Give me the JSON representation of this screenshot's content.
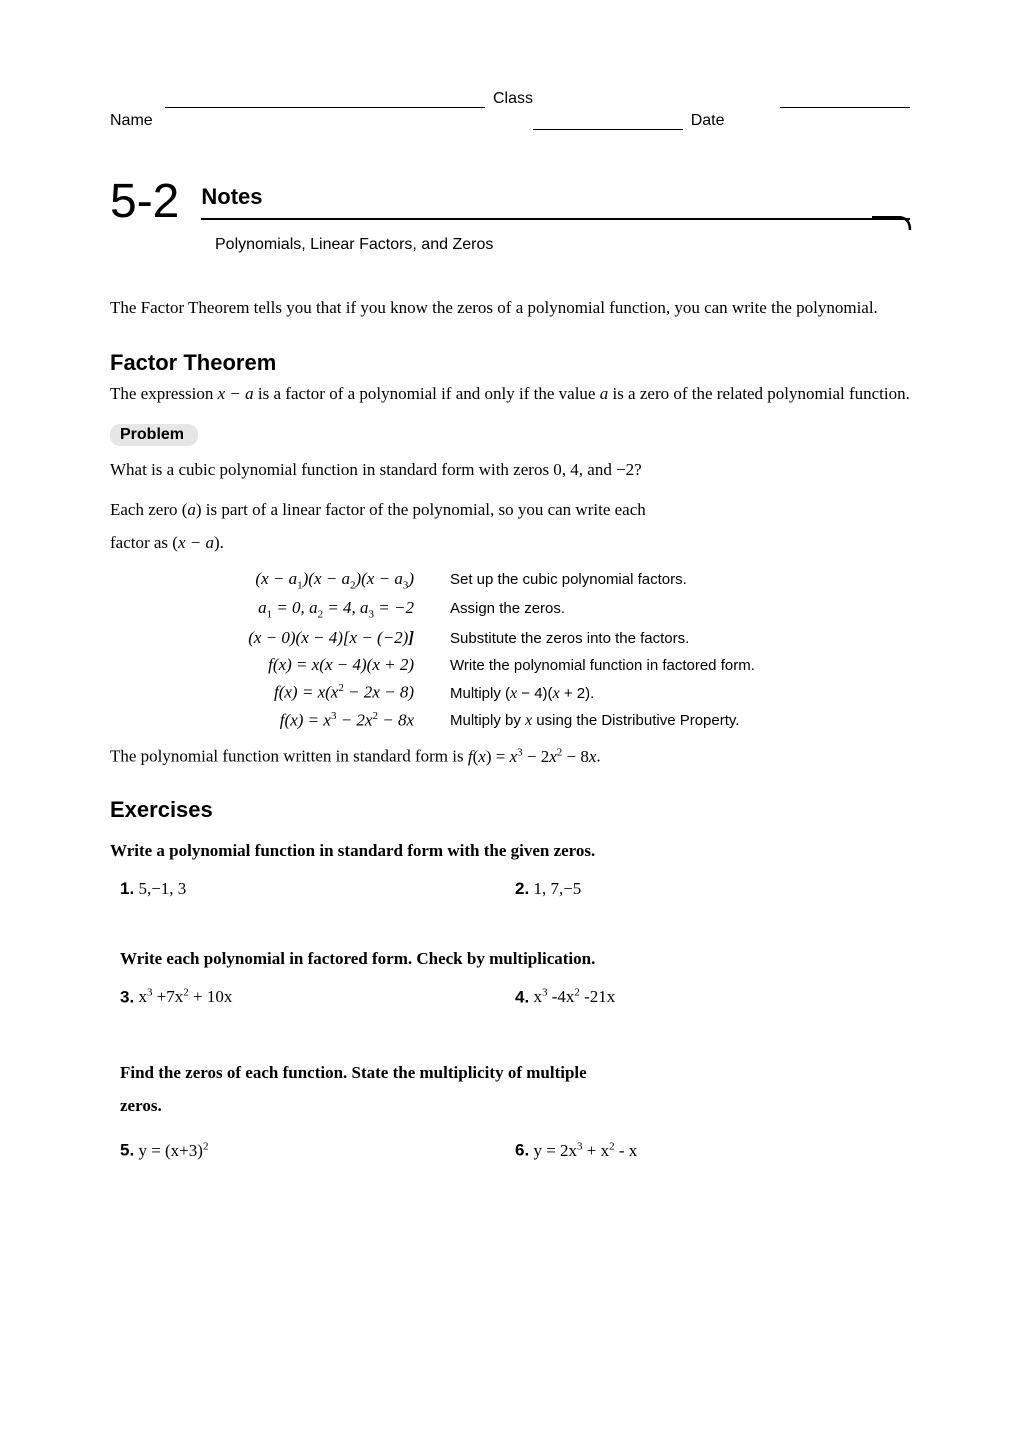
{
  "header": {
    "class_label": "Class",
    "name_label": "Name",
    "date_label": "Date"
  },
  "chapter": {
    "number": "5-2",
    "title": "Notes",
    "subtitle": "Polynomials, Linear Factors, and Zeros"
  },
  "intro_para": "The Factor Theorem tells you that if you know the zeros of a polynomial function, you can write the polynomial.",
  "factor_theorem": {
    "heading": "Factor Theorem",
    "text_pre": "The expression ",
    "expr": "x − a",
    "text_mid": " is a factor of a polynomial if and only if the value ",
    "var": "a",
    "text_post": " is a zero of the related polynomial function."
  },
  "problem": {
    "label": "Problem",
    "q_line": "What is a cubic polynomial function in standard form with zeros 0, 4, and −2?",
    "explain_line_1_pre": "Each zero (",
    "explain_line_1_var": "a",
    "explain_line_1_post": ") is part of a linear factor of the polynomial, so you can write each",
    "explain_line_2_pre": "factor as (",
    "explain_line_2_expr": "x − a",
    "explain_line_2_post": ")."
  },
  "steps": [
    {
      "left_html": "(<i>x</i> − <i>a</i><span class='sub'>1</span>)(<i>x</i> − <i>a</i><span class='sub'>2</span>)(<i>x</i> − <i>a</i><span class='sub'>3</span>)",
      "right": "Set up the cubic polynomial factors."
    },
    {
      "left_html": "<i>a</i><span class='sub'>1</span> = 0, <i>a</i><span class='sub'>2</span> = 4, <i>a</i><span class='sub'>3</span> = −2",
      "right": "Assign the zeros."
    },
    {
      "left_html": "(<i>x</i> − 0)(<i>x</i> − 4)[<i>x</i> − (−2)<b>]</b>",
      "right": "Substitute the zeros into the factors."
    },
    {
      "left_html": "<i>f</i>(<i>x</i>) = <i>x</i>(<i>x</i> − 4)(<i>x</i> + 2)",
      "right": "Write the polynomial function in factored form."
    },
    {
      "left_html": "<i>f</i>(<i>x</i>) = <i>x</i>(<i>x</i><span class='sup'>2</span> − 2<i>x</i> − 8)",
      "right_html": "Multiply (<span class='ital'>x</span> − 4)(<span class='ital'>x</span> + 2)."
    },
    {
      "left_html": "<i>f</i>(<i>x</i>) = <i>x</i><span class='sup'>3</span> − 2<i>x</i><span class='sup'>2</span> − 8<i>x</i>",
      "right_html": "Multiply by <span class='ital'>x</span> using the Distributive Property."
    }
  ],
  "result": {
    "text_pre": "The polynomial function written in standard form is ",
    "expr_html": "<i>f</i>(<i>x</i>) = <i>x</i><span class='sup'>3</span> − 2<i>x</i><span class='sup'>2</span> − 8<i>x</i>",
    "text_post": "."
  },
  "exercises": {
    "heading": "Exercises",
    "instruction1": "Write a polynomial function in standard form with the given zeros.",
    "p1": {
      "num": "1.",
      "text": " 5,−1, 3"
    },
    "p2": {
      "num": "2.",
      "text": " 1, 7,−5"
    },
    "instruction2": "Write each polynomial in factored form. Check by multiplication.",
    "p3": {
      "num": "3.",
      "text_html": "  x<span class='sup'>3</span> +7x<span class='sup'>2</span> + 10x"
    },
    "p4": {
      "num": "4.",
      "text_html": " x<span class='sup'>3</span> -4x<span class='sup'>2</span> -21x"
    },
    "instruction3_l1": "Find the zeros of each function.  State the multiplicity of multiple",
    "instruction3_l2": "zeros.",
    "p5": {
      "num": "5.",
      "text_html": "  y = (x+3)<span class='sup'>2</span>"
    },
    "p6": {
      "num": "6.",
      "text_html": " y = 2x<span class='sup'>3</span> + x<span class='sup'>2</span> - x"
    }
  },
  "colors": {
    "background": "#ffffff",
    "text": "#000000",
    "tab_bg": "#e6e6e6",
    "rule": "#000000"
  }
}
